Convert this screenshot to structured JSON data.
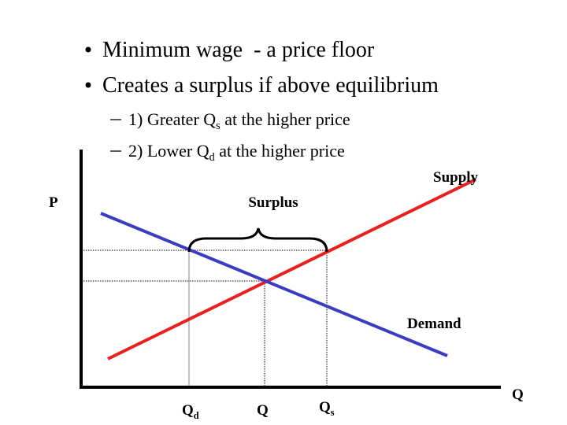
{
  "bullets": [
    {
      "text": "Minimum wage  - a price floor"
    },
    {
      "text": "Creates a surplus if above equilibrium"
    }
  ],
  "sub_bullets": [
    {
      "before": "1) Greater Q",
      "subscript": "s",
      "after": " at the higher price"
    },
    {
      "before": "2) Lower Q",
      "subscript": "d",
      "after": " at the higher price"
    }
  ],
  "diagram": {
    "y_axis_label": "P",
    "x_axis_label": "Q",
    "supply_label": "Supply",
    "demand_label": "Demand",
    "surplus_label": "Surplus",
    "x_markers": [
      {
        "text": "Q",
        "subscript": "d"
      },
      {
        "text": "Q"
      },
      {
        "text": "Q",
        "subscript": "s"
      }
    ]
  }
}
